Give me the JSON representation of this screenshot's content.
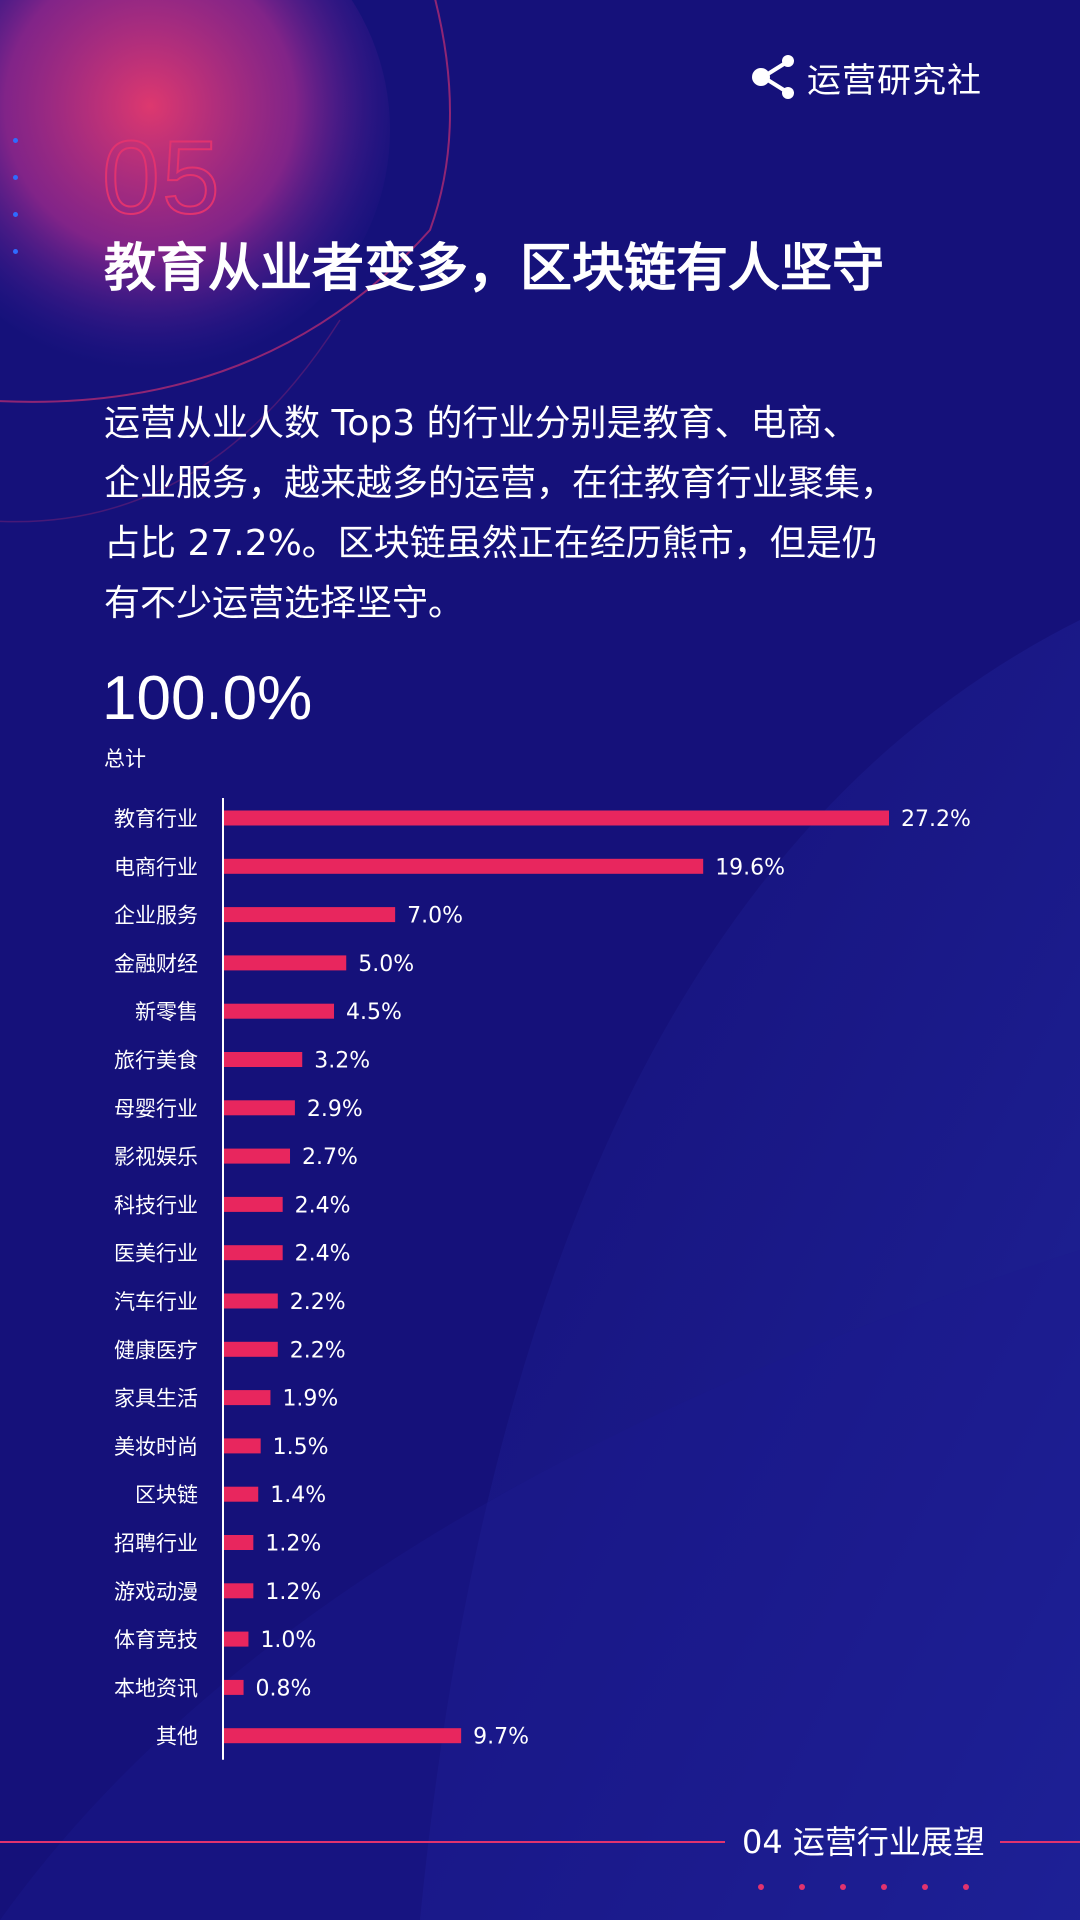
{
  "brand": {
    "name": "运营研究社",
    "icon": "share-nodes-icon"
  },
  "section_number": "05",
  "headline": "教育从业者变多，区块链有人坚守",
  "paragraph_lines": [
    "运营从业人数 Top3 的行业分别是教育、电商、",
    "企业服务，越来越多的运营，在往教育行业聚集，",
    "占比 27.2%。区块链虽然正在经历熊市，但是仍",
    "有不少运营选择坚守。"
  ],
  "total": {
    "value": "100.0%",
    "label": "总计"
  },
  "colors": {
    "background": "#15117a",
    "accent": "#e1336f",
    "bar": "#e8265e",
    "text": "#ffffff"
  },
  "chart_data": {
    "type": "bar",
    "orientation": "horizontal",
    "categories": [
      "教育行业",
      "电商行业",
      "企业服务",
      "金融财经",
      "新零售",
      "旅行美食",
      "母婴行业",
      "影视娱乐",
      "科技行业",
      "医美行业",
      "汽车行业",
      "健康医疗",
      "家具生活",
      "美妆时尚",
      "区块链",
      "招聘行业",
      "游戏动漫",
      "体育竞技",
      "本地资讯",
      "其他"
    ],
    "values": [
      27.2,
      19.6,
      7.0,
      5.0,
      4.5,
      3.2,
      2.9,
      2.7,
      2.4,
      2.4,
      2.2,
      2.2,
      1.9,
      1.5,
      1.4,
      1.2,
      1.2,
      1.0,
      0.8,
      9.7
    ],
    "value_labels": [
      "27.2%",
      "19.6%",
      "7.0%",
      "5.0%",
      "4.5%",
      "3.2%",
      "2.9%",
      "2.7%",
      "2.4%",
      "2.4%",
      "2.2%",
      "2.2%",
      "1.9%",
      "1.5%",
      "1.4%",
      "1.2%",
      "1.2%",
      "1.0%",
      "0.8%",
      "9.7%"
    ],
    "unit": "%",
    "xlim": [
      0,
      27.2
    ],
    "grid": false,
    "legend": "none"
  },
  "footer": {
    "label": "04 运营行业展望"
  }
}
